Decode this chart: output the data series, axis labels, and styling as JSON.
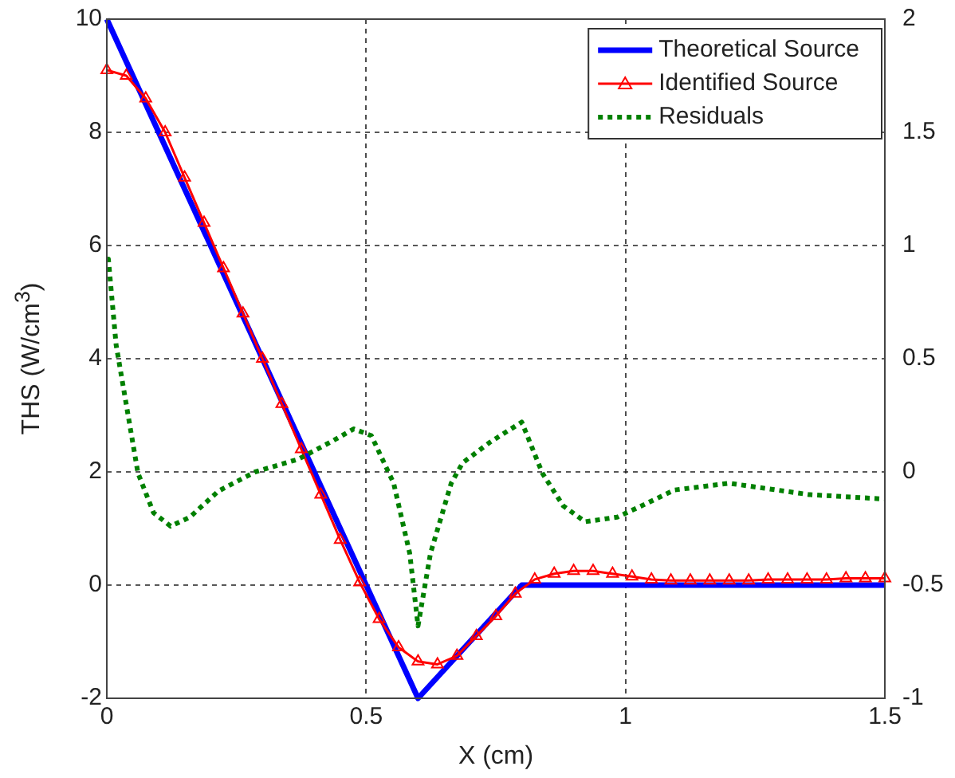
{
  "chart_data": {
    "type": "line",
    "xlabel": "X (cm)",
    "ylabel": "THS (W/cm$^{3}$)",
    "xlim": [
      0,
      1.5
    ],
    "xticks": [
      0,
      0.5,
      1,
      1.5
    ],
    "ylim": [
      -2,
      10
    ],
    "yticks": [
      -2,
      0,
      2,
      4,
      6,
      8,
      10
    ],
    "y2lim": [
      -1,
      2
    ],
    "y2ticks": [
      -1,
      -0.5,
      0,
      0.5,
      1,
      1.5,
      2
    ],
    "grid": true,
    "legend": "top right",
    "series": [
      {
        "name": "Theoretical Source",
        "color": "#0000ff",
        "marker": "none",
        "line_style": "solid",
        "x": [
          0,
          0.6,
          0.8,
          1.5
        ],
        "values": [
          10,
          -2,
          0,
          0
        ]
      },
      {
        "name": "Identified Source",
        "color": "#ff0000",
        "marker": "triangle",
        "line_style": "solid",
        "x": [
          0,
          0.0375,
          0.075,
          0.1125,
          0.15,
          0.1875,
          0.225,
          0.2625,
          0.3,
          0.3375,
          0.375,
          0.4125,
          0.45,
          0.4875,
          0.525,
          0.5625,
          0.6,
          0.6375,
          0.675,
          0.7125,
          0.75,
          0.7875,
          0.825,
          0.8625,
          0.9,
          0.9375,
          0.975,
          1.0125,
          1.05,
          1.0875,
          1.125,
          1.1625,
          1.2,
          1.2375,
          1.275,
          1.3125,
          1.35,
          1.3875,
          1.425,
          1.4625,
          1.5
        ],
        "values": [
          9.1,
          9.0,
          8.6,
          8.0,
          7.2,
          6.4,
          5.6,
          4.8,
          4.0,
          3.2,
          2.4,
          1.6,
          0.8,
          0.05,
          -0.6,
          -1.1,
          -1.35,
          -1.4,
          -1.25,
          -0.9,
          -0.55,
          -0.15,
          0.1,
          0.2,
          0.25,
          0.25,
          0.2,
          0.15,
          0.1,
          0.08,
          0.08,
          0.08,
          0.08,
          0.08,
          0.1,
          0.1,
          0.1,
          0.1,
          0.12,
          0.12,
          0.12
        ]
      },
      {
        "name": "Residuals",
        "color": "#008000",
        "marker": "none",
        "line_style": "dotted",
        "axis": "y2",
        "x": [
          0,
          0.003,
          0.018,
          0.034,
          0.06,
          0.09,
          0.123,
          0.16,
          0.215,
          0.286,
          0.369,
          0.43,
          0.476,
          0.51,
          0.553,
          0.584,
          0.6,
          0.624,
          0.664,
          0.686,
          0.738,
          0.8,
          0.84,
          0.88,
          0.922,
          0.984,
          1.04,
          1.094,
          1.2,
          1.353,
          1.5
        ],
        "values": [
          0.94,
          0.94,
          0.56,
          0.345,
          -0.005,
          -0.18,
          -0.24,
          -0.2,
          -0.085,
          0.0,
          0.056,
          0.13,
          0.19,
          0.16,
          -0.05,
          -0.36,
          -0.68,
          -0.36,
          -0.05,
          0.04,
          0.13,
          0.22,
          -0.007,
          -0.15,
          -0.22,
          -0.2,
          -0.14,
          -0.08,
          -0.05,
          -0.1,
          -0.12
        ]
      }
    ]
  }
}
